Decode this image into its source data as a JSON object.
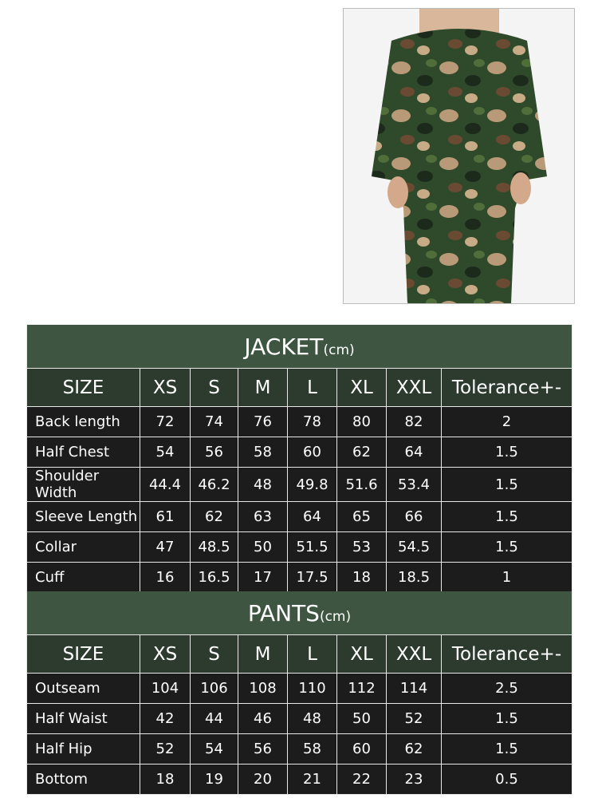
{
  "jacket": {
    "title": "JACKET",
    "unit": "(cm)",
    "headers": [
      "SIZE",
      "XS",
      "S",
      "M",
      "L",
      "XL",
      "XXL",
      "Tolerance+-"
    ],
    "rows": [
      [
        "Back length",
        "72",
        "74",
        "76",
        "78",
        "80",
        "82",
        "2"
      ],
      [
        "Half Chest",
        "54",
        "56",
        "58",
        "60",
        "62",
        "64",
        "1.5"
      ],
      [
        "Shoulder Width",
        "44.4",
        "46.2",
        "48",
        "49.8",
        "51.6",
        "53.4",
        "1.5"
      ],
      [
        "Sleeve Length",
        "61",
        "62",
        "63",
        "64",
        "65",
        "66",
        "1.5"
      ],
      [
        "Collar",
        "47",
        "48.5",
        "50",
        "51.5",
        "53",
        "54.5",
        "1.5"
      ],
      [
        "Cuff",
        "16",
        "16.5",
        "17",
        "17.5",
        "18",
        "18.5",
        "1"
      ]
    ]
  },
  "pants": {
    "title": "PANTS",
    "unit": "(cm)",
    "headers": [
      "SIZE",
      "XS",
      "S",
      "M",
      "L",
      "XL",
      "XXL",
      "Tolerance+-"
    ],
    "rows": [
      [
        "Outseam",
        "104",
        "106",
        "108",
        "110",
        "112",
        "114",
        "2.5"
      ],
      [
        "Half Waist",
        "42",
        "44",
        "46",
        "48",
        "50",
        "52",
        "1.5"
      ],
      [
        "Half Hip",
        "52",
        "54",
        "56",
        "58",
        "60",
        "62",
        "1.5"
      ],
      [
        "Bottom",
        "18",
        "19",
        "20",
        "21",
        "22",
        "23",
        "0.5"
      ]
    ]
  },
  "colors": {
    "title_band": "#3e5641",
    "header_row": "#2d3b2e",
    "data_row": "#1c1c1c"
  }
}
